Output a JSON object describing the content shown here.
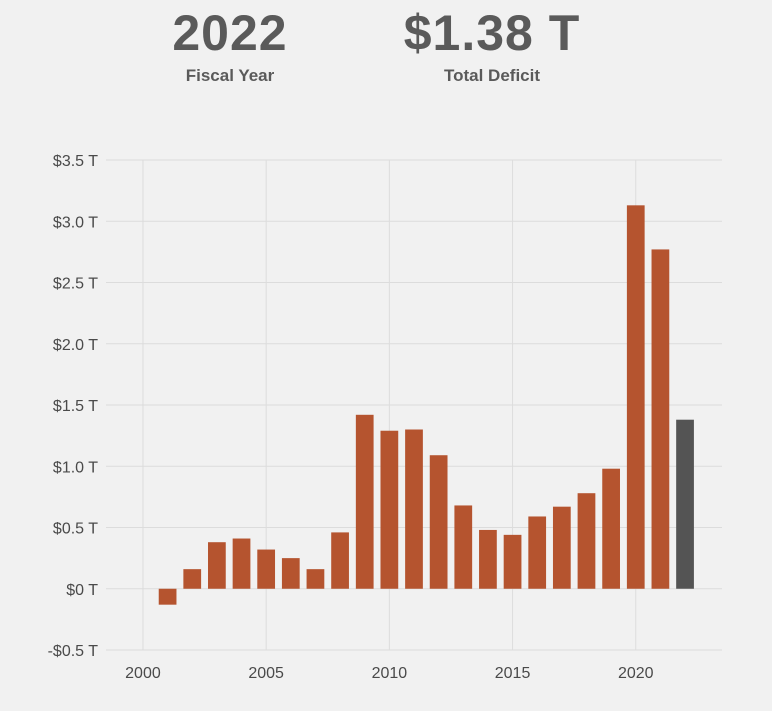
{
  "header": {
    "year_value": "2022",
    "year_label": "Fiscal Year",
    "deficit_value": "$1.38 T",
    "deficit_label": "Total Deficit"
  },
  "chart_data": {
    "type": "bar",
    "title": "",
    "xlabel": "",
    "ylabel": "",
    "unit": "T",
    "x": [
      2001,
      2002,
      2003,
      2004,
      2005,
      2006,
      2007,
      2008,
      2009,
      2010,
      2011,
      2012,
      2013,
      2014,
      2015,
      2016,
      2017,
      2018,
      2019,
      2020,
      2021,
      2022
    ],
    "values": [
      -0.13,
      0.16,
      0.38,
      0.41,
      0.32,
      0.25,
      0.16,
      0.46,
      1.42,
      1.29,
      1.3,
      1.09,
      0.68,
      0.48,
      0.44,
      0.59,
      0.67,
      0.78,
      0.98,
      3.13,
      2.77,
      1.38
    ],
    "highlight_year": 2022,
    "ylim": [
      -0.5,
      3.5
    ],
    "xlim": [
      1998.5,
      2023.5
    ],
    "y_ticks": [
      -0.5,
      0,
      0.5,
      1.0,
      1.5,
      2.0,
      2.5,
      3.0,
      3.5
    ],
    "y_tick_labels": [
      "-$0.5 T",
      "$0 T",
      "$0.5 T",
      "$1.0 T",
      "$1.5 T",
      "$2.0 T",
      "$2.5 T",
      "$3.0 T",
      "$3.5 T"
    ],
    "x_ticks": [
      2000,
      2005,
      2010,
      2015,
      2020
    ],
    "x_tick_labels": [
      "2000",
      "2005",
      "2010",
      "2015",
      "2020"
    ],
    "bar_color": "#b5542f",
    "highlight_color": "#545454",
    "grid": true
  }
}
